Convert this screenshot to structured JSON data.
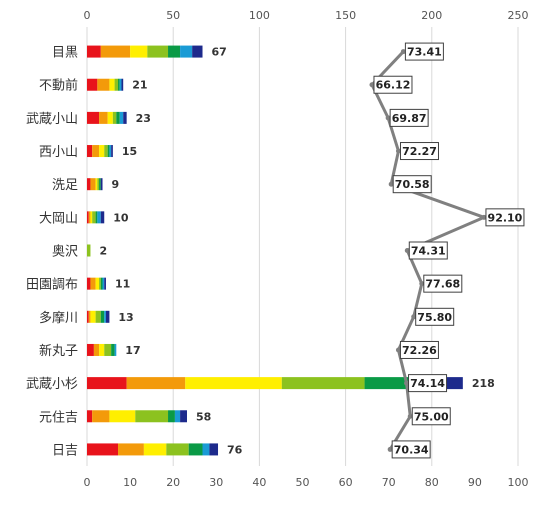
{
  "chart_data": {
    "type": "bar",
    "orientation": "horizontal",
    "categories": [
      "目黒",
      "不動前",
      "武蔵小山",
      "西小山",
      "洗足",
      "大岡山",
      "奥沢",
      "田園調布",
      "多摩川",
      "新丸子",
      "武蔵小杉",
      "元住吉",
      "日吉"
    ],
    "top_axis": {
      "ticks": [
        "0",
        "50",
        "100",
        "150",
        "200",
        "250"
      ],
      "range": [
        0,
        250
      ]
    },
    "bottom_axis": {
      "ticks": [
        "0",
        "10",
        "20",
        "30",
        "40",
        "50",
        "60",
        "70",
        "80",
        "90",
        "100"
      ],
      "range": [
        0,
        100
      ]
    },
    "grid": true,
    "legend": "none",
    "segment_colors": [
      "#e8131b",
      "#f39a0a",
      "#ffef00",
      "#8cc21f",
      "#0a9a46",
      "#1a9bd5",
      "#1d2a8c"
    ],
    "stacked_series": [
      [
        8,
        17,
        10,
        12,
        7,
        7,
        6
      ],
      [
        6,
        7,
        3,
        2,
        1,
        1,
        1
      ],
      [
        7,
        5,
        3,
        2,
        2,
        2,
        2
      ],
      [
        3,
        4,
        3,
        2,
        1,
        1,
        1
      ],
      [
        2,
        3,
        1,
        1,
        1,
        0,
        1
      ],
      [
        1,
        1,
        1,
        2,
        1,
        2,
        2
      ],
      [
        0,
        0,
        0,
        2,
        0,
        0,
        0
      ],
      [
        2,
        3,
        2,
        1,
        1,
        1,
        1
      ],
      [
        1,
        1,
        3,
        3,
        2,
        1,
        2
      ],
      [
        4,
        3,
        3,
        4,
        2,
        1,
        0
      ],
      [
        23,
        34,
        56,
        48,
        26,
        15,
        16
      ],
      [
        3,
        10,
        15,
        19,
        4,
        3,
        4
      ],
      [
        18,
        15,
        13,
        13,
        8,
        4,
        5
      ]
    ],
    "totals": [
      "67",
      "21",
      "23",
      "15",
      "9",
      "10",
      "2",
      "11",
      "13",
      "17",
      "218",
      "58",
      "76"
    ],
    "line_series": {
      "values": [
        73.41,
        66.12,
        69.87,
        72.27,
        70.58,
        92.1,
        74.31,
        77.68,
        75.8,
        72.26,
        74.14,
        75.0,
        70.34
      ],
      "labels": [
        "73.41",
        "66.12",
        "69.87",
        "72.27",
        "70.58",
        "92.10",
        "74.31",
        "77.68",
        "75.80",
        "72.26",
        "74.14",
        "75.00",
        "70.34"
      ],
      "color": "#808080"
    }
  }
}
